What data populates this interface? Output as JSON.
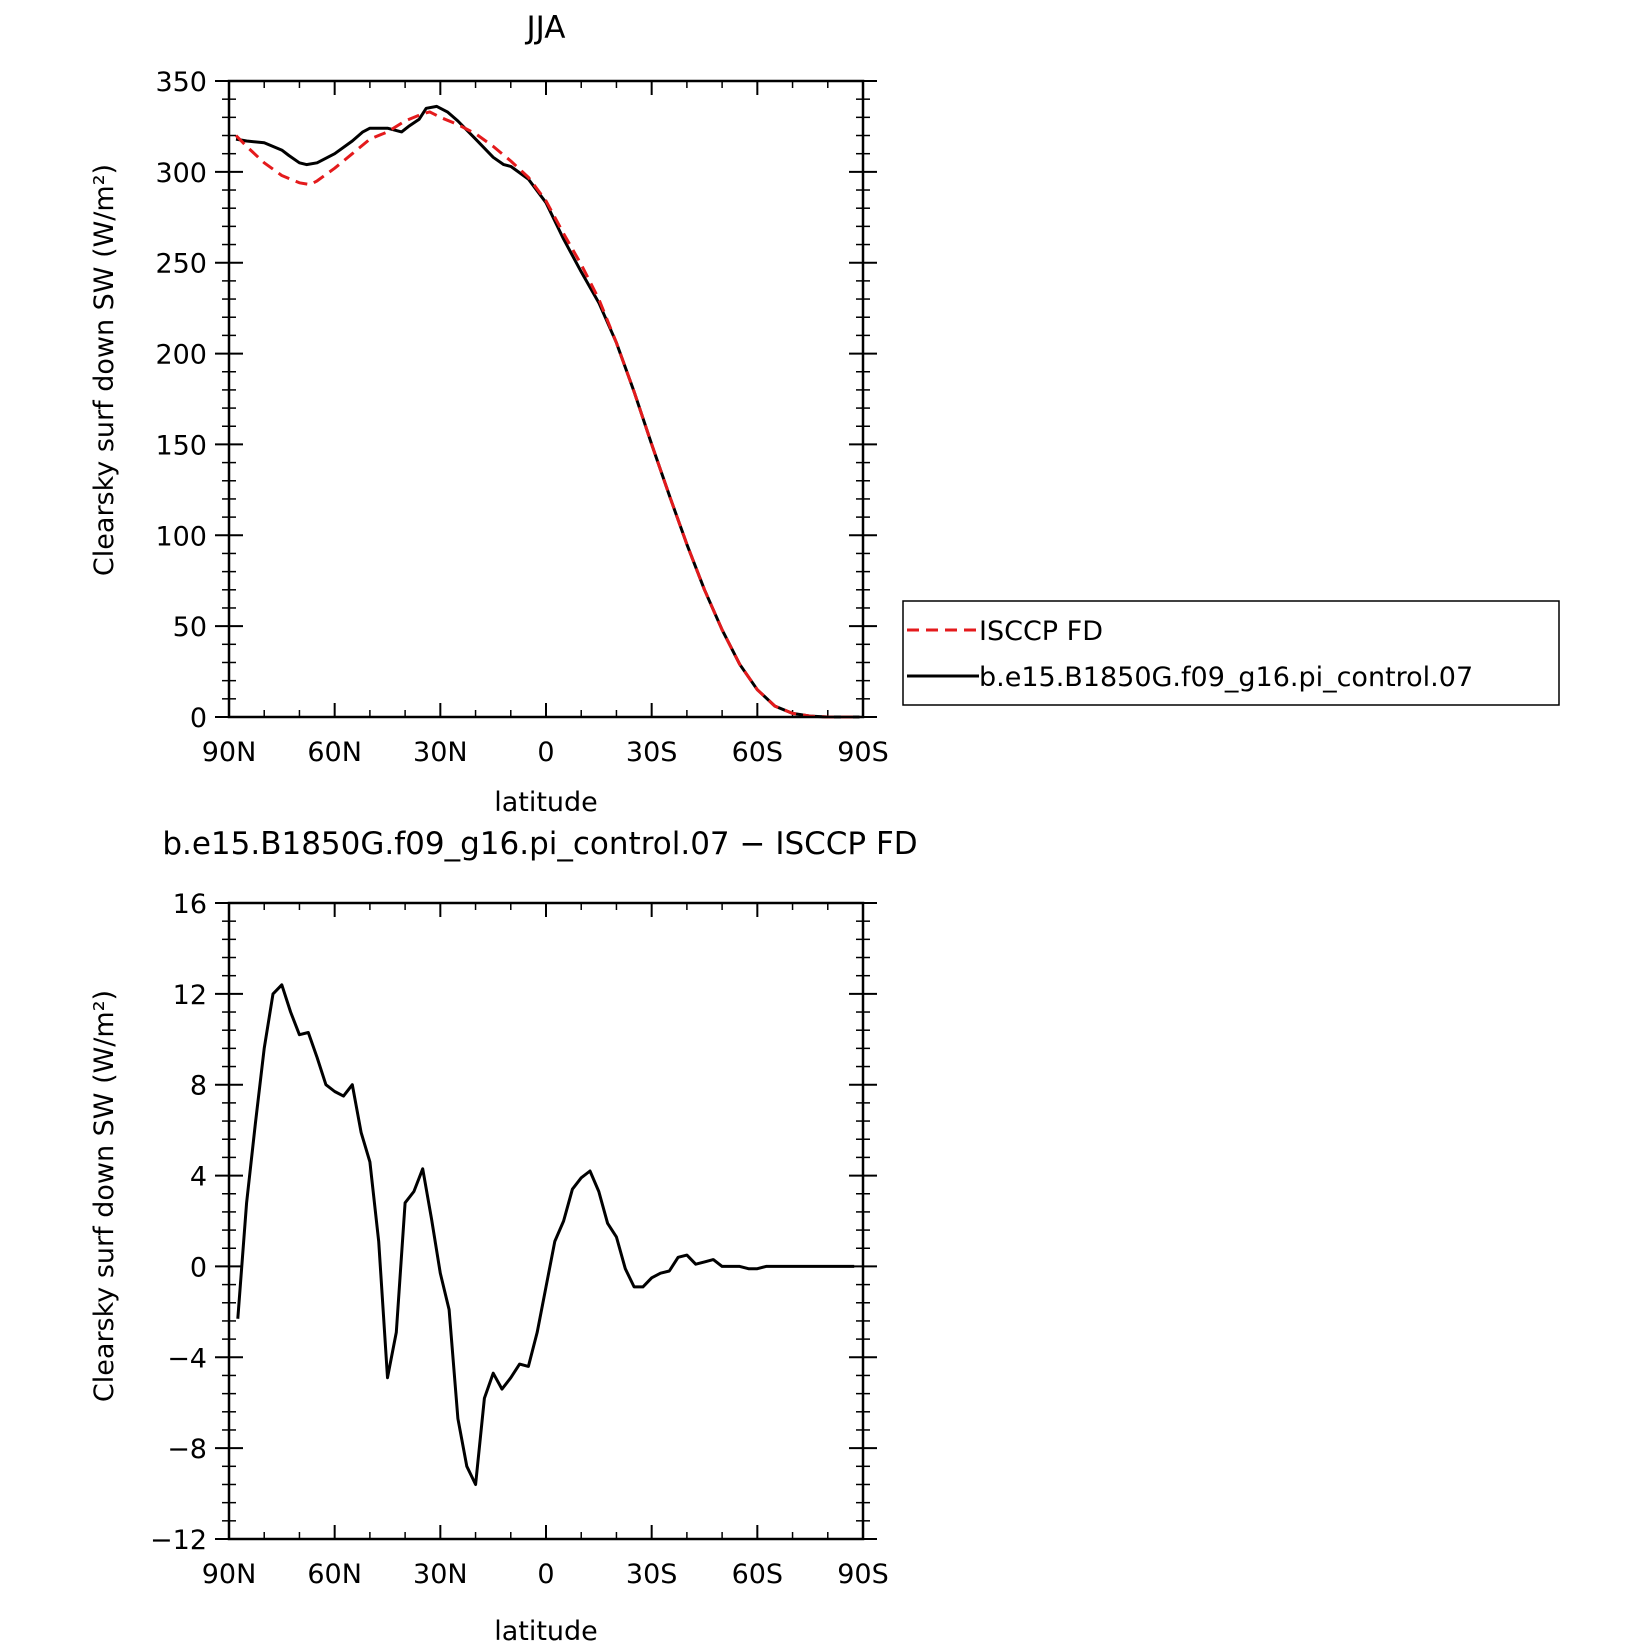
{
  "chart_data": [
    {
      "type": "line",
      "title": "JJA",
      "xlabel": "latitude",
      "ylabel": "Clearsky surf down SW (W/m²)",
      "xlim": [
        90,
        -90
      ],
      "ylim": [
        0,
        350
      ],
      "xticks": [
        90,
        60,
        30,
        0,
        -30,
        -60,
        -90
      ],
      "xtick_labels": [
        "90N",
        "60N",
        "30N",
        "0",
        "30S",
        "60S",
        "90S"
      ],
      "yticks": [
        0,
        50,
        100,
        150,
        200,
        250,
        300,
        350
      ],
      "ytick_labels": [
        "0",
        "50",
        "100",
        "150",
        "200",
        "250",
        "300",
        "350"
      ],
      "legend_position": "right",
      "series": [
        {
          "name": "ISCCP FD",
          "color": "#e41a1c",
          "dash": "dashed",
          "x": [
            88,
            85,
            80,
            75,
            70,
            67,
            65,
            60,
            55,
            50,
            45,
            40,
            35,
            33,
            30,
            25,
            20,
            15,
            10,
            5,
            0,
            -5,
            -10,
            -15,
            -20,
            -25,
            -30,
            -35,
            -40,
            -45,
            -50,
            -55,
            -60,
            -65,
            -70,
            -75,
            -80,
            -85,
            -89
          ],
          "y": [
            320,
            314,
            305,
            298,
            294,
            293,
            295,
            302,
            310,
            318,
            322,
            328,
            332,
            333,
            330,
            326,
            321,
            314,
            306,
            297,
            284,
            266,
            249,
            230,
            206,
            179,
            150,
            122,
            95,
            70,
            48,
            29,
            15,
            6,
            2,
            0.5,
            0,
            0,
            0
          ]
        },
        {
          "name": "b.e15.B1850G.f09_g16.pi_control.07",
          "color": "#000000",
          "dash": "solid",
          "x": [
            88,
            85,
            80,
            75,
            73,
            70,
            68,
            65,
            60,
            55,
            52,
            50,
            45,
            41,
            39,
            36,
            34,
            31,
            28,
            25,
            20,
            15,
            12,
            10,
            5,
            0,
            -5,
            -10,
            -15,
            -20,
            -25,
            -30,
            -35,
            -40,
            -45,
            -50,
            -55,
            -60,
            -65,
            -70,
            -75,
            -80,
            -85,
            -89
          ],
          "y": [
            318,
            317,
            316,
            312,
            309,
            305,
            304,
            305,
            310,
            317,
            322,
            324,
            324,
            322,
            325,
            329,
            335,
            336,
            333,
            328,
            318,
            308,
            304,
            303,
            296,
            283,
            263,
            245,
            228,
            206,
            179,
            150,
            122,
            95,
            70,
            48,
            29,
            15,
            6,
            2,
            0.5,
            0,
            0,
            0
          ]
        }
      ]
    },
    {
      "type": "line",
      "title": "b.e15.B1850G.f09_g16.pi_control.07 − ISCCP FD",
      "xlabel": "latitude",
      "ylabel": "Clearsky surf down SW (W/m²)",
      "xlim": [
        90,
        -90
      ],
      "ylim": [
        -12,
        16
      ],
      "xticks": [
        90,
        60,
        30,
        0,
        -30,
        -60,
        -90
      ],
      "xtick_labels": [
        "90N",
        "60N",
        "30N",
        "0",
        "30S",
        "60S",
        "90S"
      ],
      "yticks": [
        -12,
        -8,
        -4,
        0,
        4,
        8,
        12,
        16
      ],
      "ytick_labels": [
        "−12",
        "−8",
        "−4",
        "0",
        "4",
        "8",
        "12",
        "16"
      ],
      "series": [
        {
          "color": "#000000",
          "dash": "solid",
          "x": [
            87.5,
            85,
            82.5,
            80,
            77.5,
            75,
            72.5,
            70,
            67.5,
            65,
            62.5,
            60,
            57.5,
            55,
            52.5,
            50,
            47.5,
            45,
            42.5,
            40,
            37.5,
            35,
            32.5,
            30,
            27.5,
            25,
            22.5,
            20,
            17.5,
            15,
            12.5,
            10,
            7.5,
            5,
            2.5,
            0,
            -2.5,
            -5,
            -7.5,
            -10,
            -12.5,
            -15,
            -17.5,
            -20,
            -22.5,
            -25,
            -27.5,
            -30,
            -32.5,
            -35,
            -37.5,
            -40,
            -42.5,
            -45,
            -47.5,
            -50,
            -52.5,
            -55,
            -57.5,
            -60,
            -62.5,
            -65,
            -67.5,
            -70,
            -72.5,
            -75,
            -77.5,
            -80,
            -82.5,
            -85,
            -87.5
          ],
          "y": [
            -2.3,
            2.8,
            6.3,
            9.6,
            12.0,
            12.4,
            11.2,
            10.2,
            10.3,
            9.2,
            8.0,
            7.7,
            7.5,
            8.0,
            5.9,
            4.6,
            1.1,
            -4.9,
            -2.9,
            2.8,
            3.3,
            4.3,
            2.1,
            -0.3,
            -1.9,
            -6.7,
            -8.8,
            -9.6,
            -5.8,
            -4.7,
            -5.4,
            -4.9,
            -4.3,
            -4.4,
            -2.9,
            -0.9,
            1.1,
            2.0,
            3.4,
            3.9,
            4.2,
            3.3,
            1.9,
            1.3,
            -0.1,
            -0.9,
            -0.9,
            -0.5,
            -0.3,
            -0.2,
            0.4,
            0.5,
            0.1,
            0.2,
            0.3,
            0.0,
            0.0,
            0.0,
            -0.1,
            -0.1,
            0.0,
            0.0,
            0.0,
            0.0,
            0.0,
            0.0,
            0.0,
            0.0,
            0.0,
            0.0,
            0.0
          ]
        }
      ]
    }
  ]
}
